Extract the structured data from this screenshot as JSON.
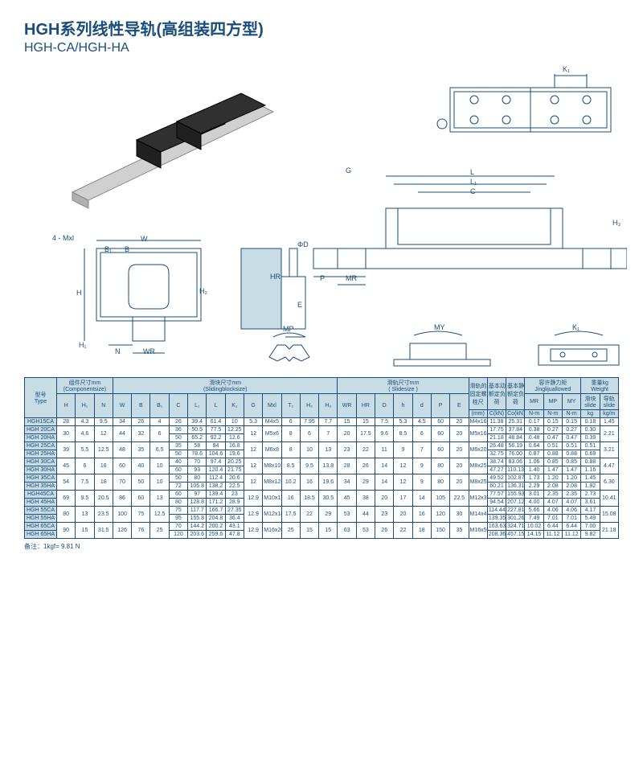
{
  "title_cn": "HGH系列线性导轨(高组装四方型)",
  "title_en": "HGH-CA/HGH-HA",
  "footnote": "备注：1kgf= 9.81 N",
  "dia_labels": [
    "4 - Mxl",
    "W",
    "B",
    "B₁",
    "H",
    "H₁",
    "H₂",
    "N",
    "WR",
    "ΦD",
    "HR",
    "Φd",
    "E",
    "P",
    "MR",
    "MP",
    "MY",
    "K₁",
    "G",
    "L",
    "L₁",
    "C",
    "H₃"
  ],
  "headers": {
    "type": "型号\nType",
    "component": "组件尺寸mm\n(Componentsize)",
    "sliding": "滑块尺寸mm\n(Slidingblocksize)",
    "slide": "滑轨尺寸mm\n( Slidesize )",
    "bolt": "滑轨的\n固定螺\n栓尺",
    "dyn": "基本动\n额定负\n荷",
    "stat": "基本静\n额定负\n荷",
    "moment": "容许静力矩\nJinglijuallowed",
    "weight": "重量kg\nWeight",
    "sub": [
      "H",
      "H₁",
      "N",
      "W",
      "B",
      "B₁",
      "C",
      "L₁",
      "L",
      "K₁",
      "G",
      "Mxl",
      "T₂",
      "H₂",
      "H₃",
      "WR",
      "HR",
      "D",
      "h",
      "d",
      "P",
      "E",
      "(mm)",
      "C(kN)",
      "Co(kN)",
      "MR",
      "MP",
      "MY",
      "滑块\nslide",
      "导轨\nslide"
    ],
    "units": [
      "",
      "",
      "",
      "",
      "",
      "",
      "",
      "",
      "",
      "",
      "",
      "",
      "",
      "",
      "",
      "",
      "",
      "",
      "",
      "",
      "",
      "",
      "",
      "",
      "",
      "N-m",
      "N-m",
      "N-m",
      "kg",
      "kg/m"
    ]
  },
  "rows": [
    {
      "t": "HGH15CA",
      "v": [
        "28",
        "4.3",
        "9.5",
        "34",
        "26",
        "4",
        "26",
        "39.4",
        "61.4",
        "10",
        "5.3",
        "M4x5",
        "6",
        "7.95",
        "7.7",
        "15",
        "15",
        "7.5",
        "5.3",
        "4.5",
        "60",
        "20",
        "M4x16",
        "11.38",
        "25.31",
        "0.17",
        "0.15",
        "0.15",
        "0.18",
        "1.45"
      ],
      "span": 1
    },
    {
      "t": "HGH 20CA",
      "v": [
        "",
        "",
        "",
        "",
        "",
        "",
        "36",
        "50.5",
        "77.5",
        "12.25",
        "",
        "",
        "",
        "",
        "",
        "",
        "",
        "",
        "",
        "",
        "",
        "",
        "",
        "17.75",
        "37.84",
        "0.38",
        "0.27",
        "0.27",
        "0.30",
        ""
      ],
      "span": 0,
      "g1": [
        "30",
        "4.6",
        "12",
        "44",
        "32",
        "6"
      ],
      "g2": [
        "12",
        "M5x6",
        "8",
        "6",
        "7"
      ],
      "g3": [
        "20",
        "17.5",
        "9.6",
        "8.5",
        "6",
        "60",
        "20"
      ],
      "g4": "M5x16",
      "g5": "2.21"
    },
    {
      "t": "HGH 20HA",
      "v": [
        "",
        "",
        "",
        "",
        "",
        "",
        "50",
        "65.2",
        "92.2",
        "12.6",
        "",
        "",
        "",
        "",
        "",
        "",
        "",
        "",
        "",
        "",
        "",
        "",
        "",
        "21.18",
        "48.84",
        "0.48",
        "0.47",
        "0.47",
        "0.39",
        ""
      ],
      "span": 0
    },
    {
      "t": "HGH 25CA",
      "v": [
        "",
        "",
        "",
        "",
        "",
        "",
        "35",
        "58",
        "84",
        "16.8",
        "",
        "",
        "",
        "",
        "",
        "",
        "",
        "",
        "",
        "",
        "",
        "",
        "",
        "26.48",
        "56.19",
        "0.64",
        "0.51",
        "0.51",
        "0.51",
        ""
      ],
      "span": 0,
      "g1": [
        "39",
        "5.5",
        "12.5",
        "48",
        "35",
        "6.5"
      ],
      "g2": [
        "12",
        "M6x8",
        "8",
        "10",
        "13"
      ],
      "g3": [
        "23",
        "22",
        "11",
        "9",
        "7",
        "60",
        "20"
      ],
      "g4": "M6x20",
      "g5": "3.21"
    },
    {
      "t": "HGH 25HA",
      "v": [
        "",
        "",
        "",
        "",
        "",
        "",
        "50",
        "78.6",
        "104.6",
        "19.6",
        "",
        "",
        "",
        "",
        "",
        "",
        "",
        "",
        "",
        "",
        "",
        "",
        "",
        "32.75",
        "76.00",
        "0.87",
        "0.88",
        "0.88",
        "0.69",
        ""
      ],
      "span": 0
    },
    {
      "t": "HGH 30CA",
      "v": [
        "",
        "",
        "",
        "",
        "",
        "",
        "40",
        "70",
        "97.4",
        "20.25",
        "",
        "",
        "",
        "",
        "",
        "",
        "",
        "",
        "",
        "",
        "",
        "",
        "",
        "38.74",
        "83.06",
        "1.06",
        "0.85",
        "0.85",
        "0.88",
        ""
      ],
      "span": 0,
      "g1": [
        "45",
        "6",
        "16",
        "60",
        "40",
        "10"
      ],
      "g2": [
        "12",
        "M8x10",
        "8.5",
        "9.5",
        "13.8"
      ],
      "g3": [
        "28",
        "26",
        "14",
        "12",
        "9",
        "80",
        "20"
      ],
      "g4": "M8x25",
      "g5": "4.47"
    },
    {
      "t": "HGH 30HA",
      "v": [
        "",
        "",
        "",
        "",
        "",
        "",
        "60",
        "93",
        "120.4",
        "21.75",
        "",
        "",
        "",
        "",
        "",
        "",
        "",
        "",
        "",
        "",
        "",
        "",
        "",
        "47.27",
        "110.13",
        "1.40",
        "1.47",
        "1.47",
        "1.16",
        ""
      ],
      "span": 0
    },
    {
      "t": "HGH 35CA",
      "v": [
        "",
        "",
        "",
        "",
        "",
        "",
        "50",
        "80",
        "112.4",
        "20.6",
        "",
        "",
        "",
        "",
        "",
        "",
        "",
        "",
        "",
        "",
        "",
        "",
        "",
        "49.52",
        "102.87",
        "1.73",
        "1.20",
        "1.20",
        "1.45",
        ""
      ],
      "span": 0,
      "g1": [
        "54",
        "7.5",
        "18",
        "70",
        "50",
        "10"
      ],
      "g2": [
        "12",
        "M8x12",
        "10.2",
        "16",
        "19.6"
      ],
      "g3": [
        "34",
        "29",
        "14",
        "12",
        "9",
        "80",
        "20"
      ],
      "g4": "M8x25",
      "g5": "6.30"
    },
    {
      "t": "HGH 35HA",
      "v": [
        "",
        "",
        "",
        "",
        "",
        "",
        "72",
        "105.8",
        "138.2",
        "22.5",
        "",
        "",
        "",
        "",
        "",
        "",
        "",
        "",
        "",
        "",
        "",
        "",
        "",
        "60.21",
        "136.31",
        "2.29",
        "2.08",
        "2.08",
        "1.92",
        ""
      ],
      "span": 0
    },
    {
      "t": "HGH45CA",
      "v": [
        "",
        "",
        "",
        "",
        "",
        "",
        "60",
        "97",
        "139.4",
        "23",
        "",
        "",
        "",
        "",
        "",
        "",
        "",
        "",
        "",
        "",
        "",
        "",
        "",
        "77.57",
        "155.93",
        "3.01",
        "2.35",
        "2.35",
        "2.73",
        ""
      ],
      "span": 0,
      "g1": [
        "69",
        "9.5",
        "20.5",
        "86",
        "60",
        "13"
      ],
      "g2": [
        "12.9",
        "M10x17",
        "16",
        "18.5",
        "30.5"
      ],
      "g3": [
        "45",
        "38",
        "20",
        "17",
        "14",
        "105",
        "22.5"
      ],
      "g4": "M12x35",
      "g5": "10.41"
    },
    {
      "t": "HGH 45HA",
      "v": [
        "",
        "",
        "",
        "",
        "",
        "",
        "80",
        "128.8",
        "171.2",
        "28.9",
        "",
        "",
        "",
        "",
        "",
        "",
        "",
        "",
        "",
        "",
        "",
        "",
        "",
        "94.54",
        "207.12",
        "4.00",
        "4.07",
        "4.07",
        "3.61",
        ""
      ],
      "span": 0
    },
    {
      "t": "HGH 55CA",
      "v": [
        "",
        "",
        "",
        "",
        "",
        "",
        "75",
        "117.7",
        "166.7",
        "27.35",
        "",
        "",
        "",
        "",
        "",
        "",
        "",
        "",
        "",
        "",
        "",
        "",
        "",
        "114.44",
        "227.81",
        "5.66",
        "4.06",
        "4.06",
        "4.17",
        ""
      ],
      "span": 0,
      "g1": [
        "80",
        "13",
        "23.5",
        "100",
        "75",
        "12.5"
      ],
      "g2": [
        "12.9",
        "M12x18",
        "17.5",
        "22",
        "29"
      ],
      "g3": [
        "53",
        "44",
        "23",
        "20",
        "16",
        "120",
        "30"
      ],
      "g4": "M14x45",
      "g5": "15.08"
    },
    {
      "t": "HGH 55HA",
      "v": [
        "",
        "",
        "",
        "",
        "",
        "",
        "95",
        "155.8",
        "204.8",
        "36.4",
        "",
        "",
        "",
        "",
        "",
        "",
        "",
        "",
        "",
        "",
        "",
        "",
        "",
        "139.35",
        "301.26",
        "7.49",
        "7.01",
        "7.01",
        "5.49",
        ""
      ],
      "span": 0
    },
    {
      "t": "HGH 65CA",
      "v": [
        "",
        "",
        "",
        "",
        "",
        "",
        "70",
        "144.2",
        "200.2",
        "43.1",
        "",
        "",
        "",
        "",
        "",
        "",
        "",
        "",
        "",
        "",
        "",
        "",
        "",
        "163.63",
        "324.71",
        "10.02",
        "6.44",
        "6.44",
        "7.00",
        ""
      ],
      "span": 0,
      "g1": [
        "90",
        "15",
        "31.5",
        "126",
        "76",
        "25"
      ],
      "g2": [
        "12.9",
        "M16x20",
        "25",
        "15",
        "15"
      ],
      "g3": [
        "63",
        "53",
        "26",
        "22",
        "18",
        "150",
        "35"
      ],
      "g4": "M16x50",
      "g5": "21.18"
    },
    {
      "t": "HGH 65HA",
      "v": [
        "",
        "",
        "",
        "",
        "",
        "",
        "120",
        "203.6",
        "259.6",
        "47.8",
        "",
        "",
        "",
        "",
        "",
        "",
        "",
        "",
        "",
        "",
        "",
        "",
        "",
        "208.36",
        "457.15",
        "14.15",
        "11.12",
        "11.12",
        "9.82",
        ""
      ],
      "span": 0
    }
  ]
}
